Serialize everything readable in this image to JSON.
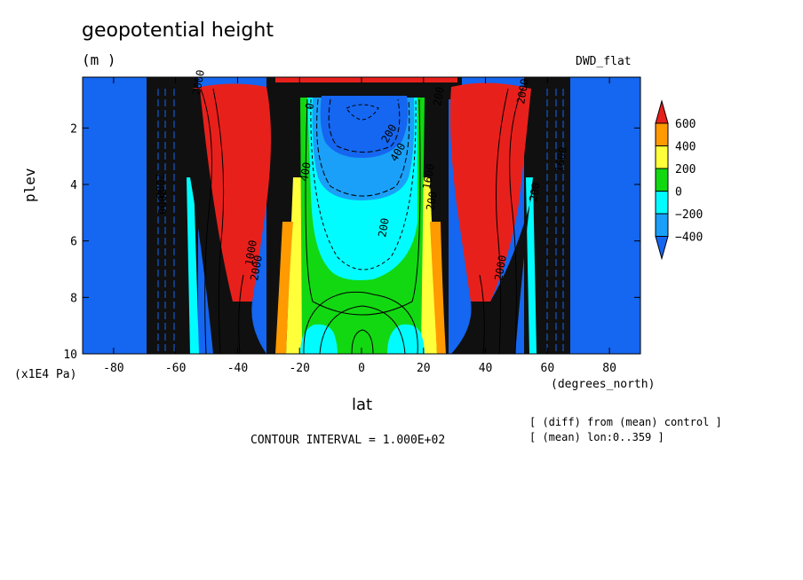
{
  "chart_data": {
    "type": "contour",
    "title": "geopotential height",
    "units": "(m )",
    "dataset": "DWD_flat",
    "xlabel": "lat",
    "x_units": "(degrees_north)",
    "ylabel": "plev",
    "y_units": "(x1E4 Pa)",
    "xlim": [
      -90,
      90
    ],
    "ylim": [
      10,
      0.2
    ],
    "x_ticks": [
      -80,
      -60,
      -40,
      -20,
      0,
      20,
      40,
      60,
      80
    ],
    "y_ticks": [
      2,
      4,
      6,
      8,
      10
    ],
    "contour_interval": "CONTOUR INTERVAL = 1.000E+02",
    "notes": [
      "[ (diff) from (mean) control ]",
      "[ (mean) lon:0..359 ]"
    ],
    "colorbar": {
      "labels": [
        "600",
        "400",
        "200",
        "0",
        "−200",
        "−400"
      ],
      "colors": [
        "#e8201c",
        "#ff9a00",
        "#ffff3a",
        "#12d812",
        "#00fcff",
        "#1aa0f8",
        "#1566f0"
      ]
    },
    "contour_labels": [
      "2000",
      "2000",
      "2000",
      "2000",
      "200",
      "400",
      "200",
      "400",
      "2000",
      "1000",
      "1600",
      "200",
      "2000",
      "1600",
      "0",
      "200",
      "200"
    ]
  }
}
